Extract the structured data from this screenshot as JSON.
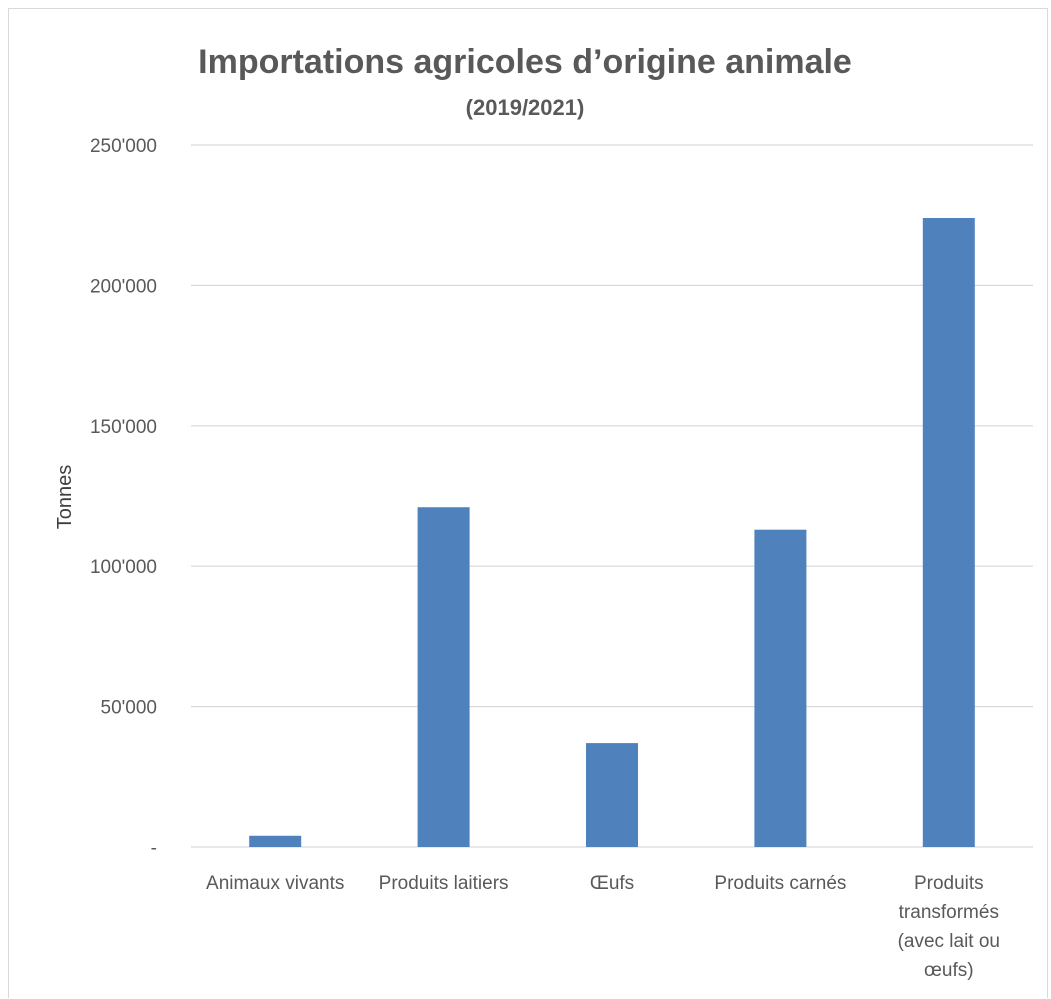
{
  "chart_data": {
    "type": "bar",
    "title": "Importations agricoles d’origine animale",
    "subtitle": "(2019/2021)",
    "ylabel": "Tonnes",
    "xlabel": "",
    "ylim": [
      0,
      250000
    ],
    "yticks": [
      0,
      50000,
      100000,
      150000,
      200000,
      250000
    ],
    "ytick_labels": [
      "-",
      "50'000",
      "100'000",
      "150'000",
      "200'000",
      "250'000"
    ],
    "categories": [
      [
        "Animaux vivants"
      ],
      [
        "Produits laitiers"
      ],
      [
        "Œufs"
      ],
      [
        "Produits carnés"
      ],
      [
        "Produits",
        "transformés",
        "(avec lait ou",
        "œufs)"
      ]
    ],
    "values": [
      4000,
      121000,
      37000,
      113000,
      224000
    ],
    "grid": true,
    "legend": "none",
    "bar_color": "#4F81BD",
    "grid_color": "#d9d9d9",
    "text_color": "#595959"
  }
}
